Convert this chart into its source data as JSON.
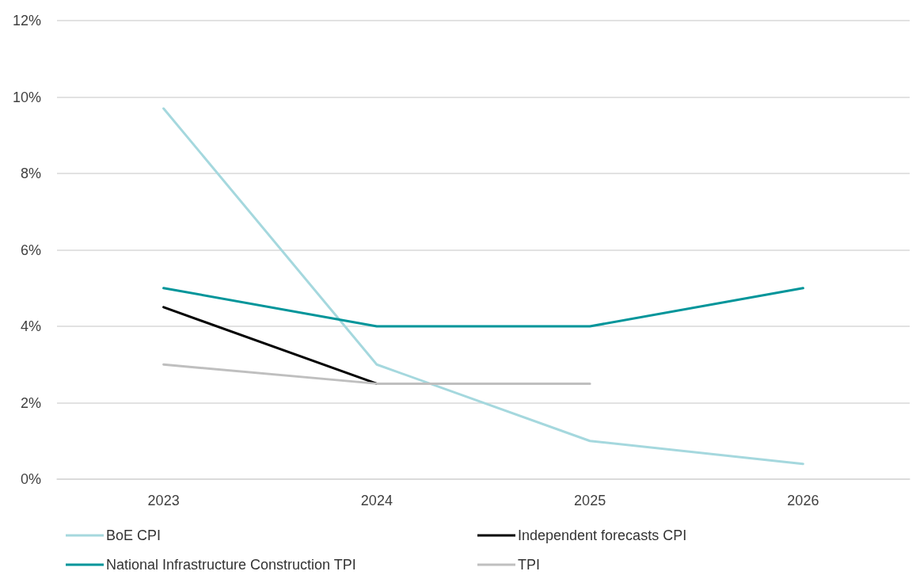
{
  "chart_data": {
    "type": "line",
    "categories": [
      "2023",
      "2024",
      "2025",
      "2026"
    ],
    "series": [
      {
        "name": "BoE CPI",
        "color": "#a5d8de",
        "values": [
          9.7,
          3.0,
          1.0,
          0.4
        ]
      },
      {
        "name": "Independent forecasts CPI",
        "color": "#000000",
        "values": [
          4.5,
          2.5,
          null,
          null
        ]
      },
      {
        "name": "National Infrastructure Construction TPI",
        "color": "#00959a",
        "values": [
          5.0,
          4.0,
          4.0,
          5.0
        ]
      },
      {
        "name": "TPI",
        "color": "#bfbfbf",
        "values": [
          3.0,
          2.5,
          2.5,
          null
        ]
      }
    ],
    "ylim": [
      0,
      12
    ],
    "yticks": [
      {
        "value": 0,
        "label": "0%"
      },
      {
        "value": 2,
        "label": "2%"
      },
      {
        "value": 4,
        "label": "4%"
      },
      {
        "value": 6,
        "label": "6%"
      },
      {
        "value": 8,
        "label": "8%"
      },
      {
        "value": 10,
        "label": "10%"
      },
      {
        "value": 12,
        "label": "12%"
      }
    ],
    "grid": "y",
    "legend": "bottom"
  }
}
